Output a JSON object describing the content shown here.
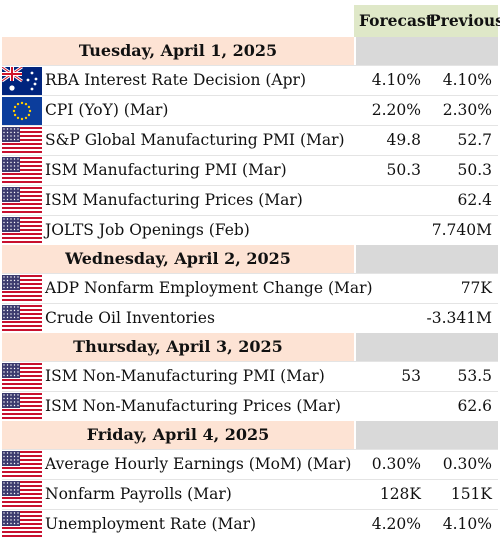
{
  "header": {
    "forecast_label": "Forecast",
    "previous_label": "Previous"
  },
  "days": [
    {
      "label": "Tuesday, April 1, 2025",
      "events": [
        {
          "flag": "au",
          "flag_icon": "australia-flag-icon",
          "name": "RBA Interest Rate Decision (Apr)",
          "forecast": "4.10%",
          "previous": "4.10%"
        },
        {
          "flag": "eu",
          "flag_icon": "eu-flag-icon",
          "name": "CPI (YoY) (Mar)",
          "forecast": "2.20%",
          "previous": "2.30%"
        },
        {
          "flag": "us",
          "flag_icon": "us-flag-icon",
          "name": "S&P Global Manufacturing PMI (Mar)",
          "forecast": "49.8",
          "previous": "52.7"
        },
        {
          "flag": "us",
          "flag_icon": "us-flag-icon",
          "name": "ISM Manufacturing PMI (Mar)",
          "forecast": "50.3",
          "previous": "50.3"
        },
        {
          "flag": "us",
          "flag_icon": "us-flag-icon",
          "name": "ISM Manufacturing Prices (Mar)",
          "forecast": "",
          "previous": "62.4"
        },
        {
          "flag": "us",
          "flag_icon": "us-flag-icon",
          "name": "JOLTS Job Openings (Feb)",
          "forecast": "",
          "previous": "7.740M"
        }
      ]
    },
    {
      "label": "Wednesday, April 2, 2025",
      "events": [
        {
          "flag": "us",
          "flag_icon": "us-flag-icon",
          "name": "ADP Nonfarm Employment Change (Mar)",
          "forecast": "",
          "previous": "77K"
        },
        {
          "flag": "us",
          "flag_icon": "us-flag-icon",
          "name": "Crude Oil Inventories",
          "forecast": "",
          "previous": "-3.341M"
        }
      ]
    },
    {
      "label": "Thursday, April 3, 2025",
      "events": [
        {
          "flag": "us",
          "flag_icon": "us-flag-icon",
          "name": "ISM Non-Manufacturing PMI (Mar)",
          "forecast": "53",
          "previous": "53.5"
        },
        {
          "flag": "us",
          "flag_icon": "us-flag-icon",
          "name": "ISM Non-Manufacturing Prices (Mar)",
          "forecast": "",
          "previous": "62.6"
        }
      ]
    },
    {
      "label": "Friday, April 4, 2025",
      "events": [
        {
          "flag": "us",
          "flag_icon": "us-flag-icon",
          "name": "Average Hourly Earnings (MoM) (Mar)",
          "forecast": "0.30%",
          "previous": "0.30%"
        },
        {
          "flag": "us",
          "flag_icon": "us-flag-icon",
          "name": "Nonfarm Payrolls (Mar)",
          "forecast": "128K",
          "previous": "151K"
        },
        {
          "flag": "us",
          "flag_icon": "us-flag-icon",
          "name": "Unemployment Rate (Mar)",
          "forecast": "4.20%",
          "previous": "4.10%"
        }
      ]
    }
  ],
  "colors": {
    "header_bg": "#dfe8c8",
    "day_bg": "#fde3d4",
    "day_right_bg": "#d9d9d9"
  }
}
